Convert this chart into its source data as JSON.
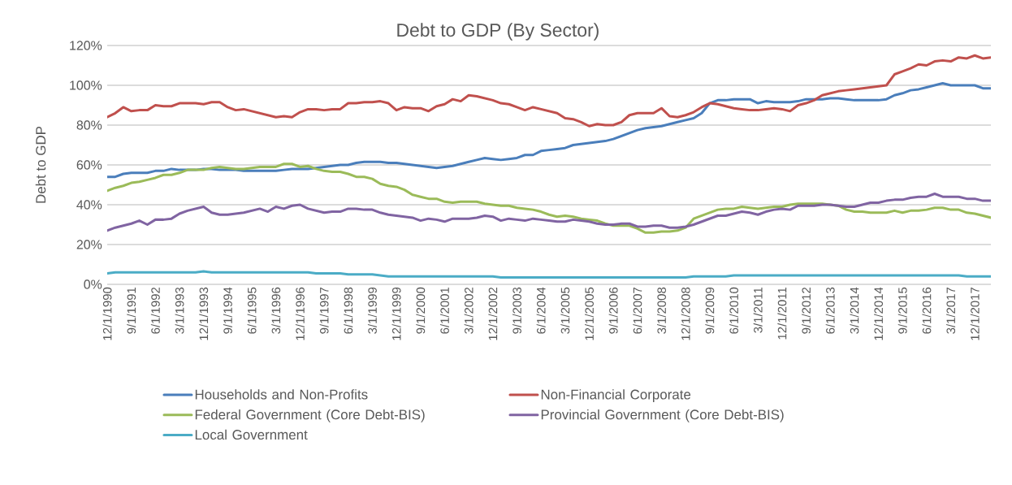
{
  "chart_data": {
    "type": "line",
    "title": "Debt to GDP (By Sector)",
    "ylabel": "Debt to GDP",
    "categories": [
      "12/1/1990",
      null,
      null,
      "9/1/1991",
      null,
      null,
      "6/1/1992",
      null,
      null,
      "3/1/1993",
      null,
      null,
      "12/1/1993",
      null,
      null,
      "9/1/1994",
      null,
      null,
      "6/1/1995",
      null,
      null,
      "3/1/1996",
      null,
      null,
      "12/1/1996",
      null,
      null,
      "9/1/1997",
      null,
      null,
      "6/1/1998",
      null,
      null,
      "3/1/1999",
      null,
      null,
      "12/1/1999",
      null,
      null,
      "9/1/2000",
      null,
      null,
      "6/1/2001",
      null,
      null,
      "3/1/2002",
      null,
      null,
      "12/1/2002",
      null,
      null,
      "9/1/2003",
      null,
      null,
      "6/1/2004",
      null,
      null,
      "3/1/2005",
      null,
      null,
      "12/1/2005",
      null,
      null,
      "9/1/2006",
      null,
      null,
      "6/1/2007",
      null,
      null,
      "3/1/2008",
      null,
      null,
      "12/1/2008",
      null,
      null,
      "9/1/2009",
      null,
      null,
      "6/1/2010",
      null,
      null,
      "3/1/2011",
      null,
      null,
      "12/1/2011",
      null,
      null,
      "9/1/2012",
      null,
      null,
      "6/1/2013",
      null,
      null,
      "3/1/2014",
      null,
      null,
      "12/1/2014",
      null,
      null,
      "9/1/2015",
      null,
      null,
      "6/1/2016",
      null,
      null,
      "3/1/2017",
      null,
      null,
      "12/1/2017",
      null,
      null
    ],
    "series": [
      {
        "name": "Households and Non-Profits",
        "color": "#4a7ebb",
        "values": [
          54,
          54,
          55.5,
          56,
          56,
          56,
          57,
          57,
          58,
          57.5,
          57.5,
          57.5,
          58,
          58,
          57.5,
          57.5,
          57.5,
          57,
          57,
          57,
          57,
          57,
          57.5,
          58,
          58,
          58,
          58.5,
          59,
          59.5,
          60,
          60,
          61,
          61.5,
          61.5,
          61.5,
          61,
          61,
          60.5,
          60,
          59.5,
          59,
          58.5,
          59,
          59.5,
          60.5,
          61.5,
          62.5,
          63.5,
          63,
          62.5,
          63,
          63.5,
          65,
          65,
          67,
          67.5,
          68,
          68.5,
          70,
          70.5,
          71,
          71.5,
          72,
          73,
          74.5,
          76,
          77.5,
          78.5,
          79,
          79.5,
          80.5,
          81.5,
          82.5,
          83.5,
          86,
          91,
          92.5,
          92.5,
          93,
          93,
          93,
          91,
          92,
          91.5,
          91.5,
          91.5,
          92,
          93,
          93,
          93,
          93.5,
          93.5,
          93,
          92.5,
          92.5,
          92.5,
          92.5,
          93,
          95,
          96,
          97.5,
          98,
          99,
          100,
          101,
          100,
          100,
          100,
          100,
          98.5,
          98.5
        ]
      },
      {
        "name": "Non-Financial Corporate",
        "color": "#c0504d",
        "values": [
          84,
          86,
          89,
          87,
          87.5,
          87.5,
          90,
          89.5,
          89.5,
          91,
          91,
          91,
          90.5,
          91.5,
          91.5,
          89,
          87.5,
          88,
          87,
          86,
          85,
          84,
          84.5,
          84,
          86.5,
          88,
          88,
          87.5,
          88,
          88,
          91,
          91,
          91.5,
          91.5,
          92,
          91,
          87.5,
          89,
          88.5,
          88.5,
          87,
          89.5,
          90.5,
          93,
          92,
          95,
          94.5,
          93.5,
          92.5,
          91,
          90.5,
          89,
          87.5,
          89,
          88,
          87,
          86,
          83.5,
          83,
          81.5,
          79.5,
          80.5,
          80,
          80,
          81.5,
          85,
          86,
          86,
          86,
          88.5,
          84.5,
          84,
          85,
          86.5,
          89,
          91,
          90.5,
          89.5,
          88.5,
          88,
          87.5,
          87.5,
          88,
          88.5,
          88,
          87,
          90,
          91,
          92.5,
          95,
          96,
          97,
          97.5,
          98,
          98.5,
          99,
          99.5,
          100,
          105.5,
          107,
          108.5,
          110.5,
          110,
          112,
          112.5,
          112,
          114,
          113.5,
          115,
          113.5,
          114
        ]
      },
      {
        "name": "Federal Government (Core Debt-BIS)",
        "color": "#9bbb59",
        "values": [
          47,
          48.5,
          49.5,
          51,
          51.5,
          52.5,
          53.5,
          55,
          55,
          56,
          57.5,
          57.5,
          57.5,
          58.5,
          59,
          58.5,
          58,
          58,
          58.5,
          59,
          59,
          59,
          60.5,
          60.5,
          59,
          59.5,
          58,
          57,
          56.5,
          56.5,
          55.5,
          54,
          54,
          53,
          50.5,
          49.5,
          49,
          47.5,
          45,
          44,
          43,
          43,
          41.5,
          41,
          41.5,
          41.5,
          41.5,
          40.5,
          40,
          39.5,
          39.5,
          38.5,
          38,
          37.5,
          36.5,
          35,
          34,
          34.5,
          34,
          33,
          32.5,
          32,
          30.5,
          29.5,
          29.5,
          29.5,
          28,
          26,
          26,
          26.5,
          26.5,
          27,
          28.5,
          33,
          34.5,
          36,
          37.5,
          38,
          38,
          39,
          38.5,
          38,
          38.5,
          39,
          39,
          40,
          40.5,
          40.5,
          40.5,
          40.5,
          40,
          39.5,
          37.5,
          36.5,
          36.5,
          36,
          36,
          36,
          37,
          36,
          37,
          37,
          37.5,
          38.5,
          38.5,
          37.5,
          37.5,
          36,
          35.5,
          34.5,
          33.5
        ]
      },
      {
        "name": "Provincial Government (Core Debt-BIS)",
        "color": "#8064a2",
        "values": [
          27,
          28.5,
          29.5,
          30.5,
          32,
          30,
          32.5,
          32.5,
          33,
          35.5,
          37,
          38,
          39,
          36,
          35,
          35,
          35.5,
          36,
          37,
          38,
          36.5,
          39,
          38,
          39.5,
          40,
          38,
          37,
          36,
          36.5,
          36.5,
          38,
          38,
          37.5,
          37.5,
          36,
          35,
          34.5,
          34,
          33.5,
          32,
          33,
          32.5,
          31.5,
          33,
          33,
          33,
          33.5,
          34.5,
          34,
          32,
          33,
          32.5,
          32,
          33,
          32.5,
          32,
          31.5,
          31.5,
          32.5,
          32,
          31.5,
          30.5,
          30,
          30,
          30.5,
          30.5,
          29,
          29,
          29.5,
          29.5,
          28.5,
          28.5,
          29,
          30,
          31.5,
          33,
          34.5,
          34.5,
          35.5,
          36.5,
          36,
          35,
          36.5,
          37.5,
          38,
          37.5,
          39.5,
          39.5,
          39.5,
          40,
          40,
          39.5,
          39,
          39,
          40,
          41,
          41,
          42,
          42.5,
          42.5,
          43.5,
          44,
          44,
          45.5,
          44,
          44,
          44,
          43,
          43,
          42,
          42
        ]
      },
      {
        "name": "Local Government",
        "color": "#4bacc6",
        "values": [
          5.5,
          6,
          6,
          6,
          6,
          6,
          6,
          6,
          6,
          6,
          6,
          6,
          6.5,
          6,
          6,
          6,
          6,
          6,
          6,
          6,
          6,
          6,
          6,
          6,
          6,
          6,
          5.5,
          5.5,
          5.5,
          5.5,
          5,
          5,
          5,
          5,
          4.5,
          4,
          4,
          4,
          4,
          4,
          4,
          4,
          4,
          4,
          4,
          4,
          4,
          4,
          4,
          3.5,
          3.5,
          3.5,
          3.5,
          3.5,
          3.5,
          3.5,
          3.5,
          3.5,
          3.5,
          3.5,
          3.5,
          3.5,
          3.5,
          3.5,
          3.5,
          3.5,
          3.5,
          3.5,
          3.5,
          3.5,
          3.5,
          3.5,
          3.5,
          4,
          4,
          4,
          4,
          4,
          4.5,
          4.5,
          4.5,
          4.5,
          4.5,
          4.5,
          4.5,
          4.5,
          4.5,
          4.5,
          4.5,
          4.5,
          4.5,
          4.5,
          4.5,
          4.5,
          4.5,
          4.5,
          4.5,
          4.5,
          4.5,
          4.5,
          4.5,
          4.5,
          4.5,
          4.5,
          4.5,
          4.5,
          4.5,
          4,
          4,
          4,
          4
        ]
      }
    ],
    "ylim": [
      0,
      120
    ],
    "yticks": [
      {
        "value": 0,
        "label": "0%"
      },
      {
        "value": 20,
        "label": "20%"
      },
      {
        "value": 40,
        "label": "40%"
      },
      {
        "value": 60,
        "label": "60%"
      },
      {
        "value": 80,
        "label": "80%"
      },
      {
        "value": 100,
        "label": "100%"
      },
      {
        "value": 120,
        "label": "120%"
      }
    ],
    "grid": "y",
    "legend": "bottom",
    "line_style": "solid"
  }
}
